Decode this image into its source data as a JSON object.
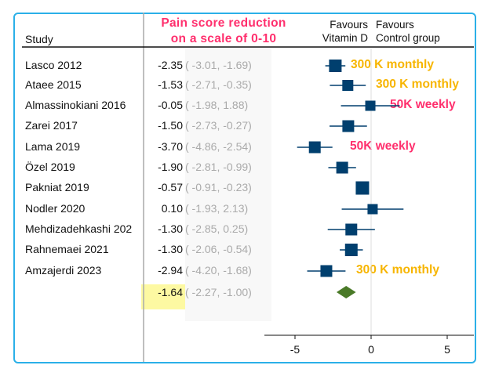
{
  "chart_data": {
    "type": "forest",
    "title": "Pain score reduction on a scale of 0-10",
    "title_lines": [
      "Pain score reduction",
      "on a scale of 0-10"
    ],
    "column_header": "Study",
    "favours_left": [
      "Favours",
      "Vitamin D"
    ],
    "favours_right": [
      "Favours",
      "Control group"
    ],
    "xlim": [
      -7,
      7
    ],
    "xticks": [
      "-5",
      "0",
      "5"
    ],
    "xtick_values": [
      -5,
      0,
      5
    ],
    "studies": [
      {
        "name": "Lasco 2012",
        "est": -2.35,
        "lo": -3.01,
        "hi": -1.69,
        "est_text": "-2.35",
        "ci_text": "( -3.01, -1.69)",
        "annotation": "300 K monthly",
        "annotation_color": "#f7b500"
      },
      {
        "name": "Ataee 2015",
        "est": -1.53,
        "lo": -2.71,
        "hi": -0.35,
        "est_text": "-1.53",
        "ci_text": "( -2.71, -0.35)",
        "annotation": "300 K monthly",
        "annotation_color": "#f7b500"
      },
      {
        "name": "Almassinokiani 2016",
        "est": -0.05,
        "lo": -1.98,
        "hi": 1.88,
        "est_text": "-0.05",
        "ci_text": "( -1.98,  1.88)",
        "annotation": "50K weekly",
        "annotation_color": "#ff2f6d"
      },
      {
        "name": "Zarei 2017",
        "est": -1.5,
        "lo": -2.73,
        "hi": -0.27,
        "est_text": "-1.50",
        "ci_text": "( -2.73, -0.27)"
      },
      {
        "name": "Lama 2019",
        "est": -3.7,
        "lo": -4.86,
        "hi": -2.54,
        "est_text": "-3.70",
        "ci_text": "( -4.86, -2.54)",
        "annotation": "50K weekly",
        "annotation_color": "#ff2f6d"
      },
      {
        "name": "Özel 2019",
        "est": -1.9,
        "lo": -2.81,
        "hi": -0.99,
        "est_text": "-1.90",
        "ci_text": "( -2.81, -0.99)"
      },
      {
        "name": "Pakniat 2019",
        "est": -0.57,
        "lo": -0.91,
        "hi": -0.23,
        "est_text": "-0.57",
        "ci_text": "( -0.91, -0.23)"
      },
      {
        "name": "Nodler 2020",
        "est": 0.1,
        "lo": -1.93,
        "hi": 2.13,
        "est_text": "0.10",
        "ci_text": "( -1.93,  2.13)"
      },
      {
        "name": "Mehdizadehkashi 202",
        "est": -1.3,
        "lo": -2.85,
        "hi": 0.25,
        "est_text": "-1.30",
        "ci_text": "( -2.85,  0.25)"
      },
      {
        "name": "Rahnemaei 2021",
        "est": -1.3,
        "lo": -2.06,
        "hi": -0.54,
        "est_text": "-1.30",
        "ci_text": "( -2.06, -0.54)"
      },
      {
        "name": "Amzajerdi 2023",
        "est": -2.94,
        "lo": -4.2,
        "hi": -1.68,
        "est_text": "-2.94",
        "ci_text": "( -4.20, -1.68)",
        "annotation": "300 K monthly",
        "annotation_color": "#f7b500"
      }
    ],
    "overall": {
      "est": -1.64,
      "lo": -2.27,
      "hi": -1.0,
      "est_text": "-1.64",
      "ci_text": "( -2.27, -1.00)"
    },
    "colors": {
      "box": "#003f6e",
      "diamond": "#4a7a28",
      "frame": "#2bb0e8",
      "highlight": "#fdf9a2"
    }
  }
}
